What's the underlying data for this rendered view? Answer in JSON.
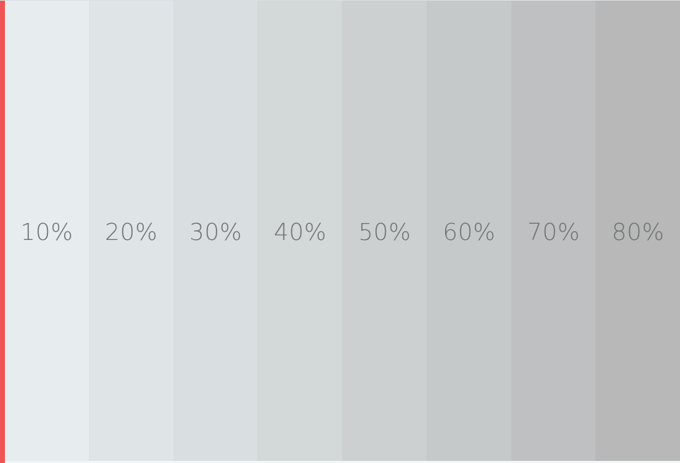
{
  "accent": {
    "color": "#ee5455"
  },
  "swatches": [
    {
      "label": "10%",
      "color": "#e7edef"
    },
    {
      "label": "20%",
      "color": "#dfe5e7"
    },
    {
      "label": "30%",
      "color": "#d9dee0"
    },
    {
      "label": "40%",
      "color": "#d3d8d8"
    },
    {
      "label": "50%",
      "color": "#cdd0d1"
    },
    {
      "label": "60%",
      "color": "#c6c9ca"
    },
    {
      "label": "70%",
      "color": "#bfc0c2"
    },
    {
      "label": "80%",
      "color": "#b7b8b7"
    }
  ]
}
